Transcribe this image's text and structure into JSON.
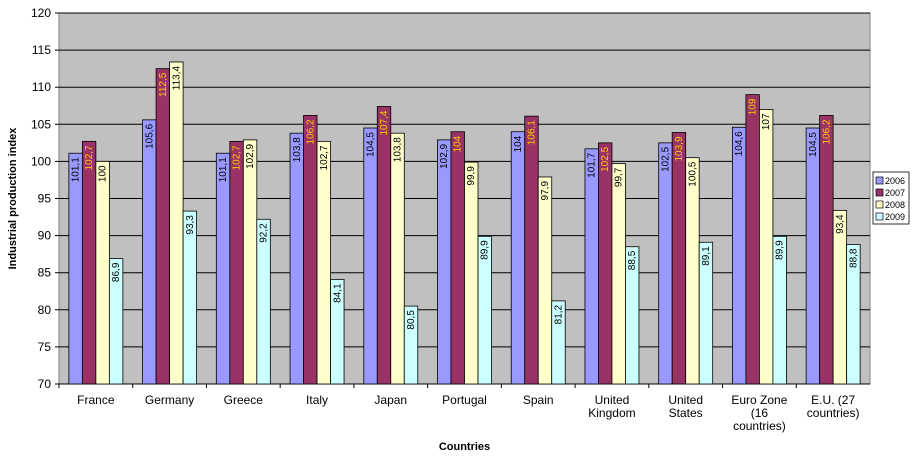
{
  "chart_data": {
    "type": "bar",
    "title": "",
    "xlabel": "Countries",
    "ylabel": "Industrial production index",
    "ylim": [
      70,
      120
    ],
    "yticks": [
      "70",
      "75",
      "80",
      "85",
      "90",
      "95",
      "100",
      "105",
      "110",
      "115",
      "120"
    ],
    "grid": true,
    "legend_position": "right",
    "categories": [
      [
        "France"
      ],
      [
        "Germany"
      ],
      [
        "Greece"
      ],
      [
        "Italy"
      ],
      [
        "Japan"
      ],
      [
        "Portugal"
      ],
      [
        "Spain"
      ],
      [
        "United",
        "Kingdom"
      ],
      [
        "United",
        "States"
      ],
      [
        "Euro Zone",
        "(16",
        "countries)"
      ],
      [
        "E.U. (27",
        "countries)"
      ]
    ],
    "series": [
      {
        "name": "2006",
        "color": "#9999ff",
        "label_color": "#000000",
        "values": [
          101.1,
          105.6,
          101.1,
          103.8,
          104.5,
          102.9,
          104,
          101.7,
          102.5,
          104.6,
          104.5
        ],
        "labels": [
          "101,1",
          "105,6",
          "101,1",
          "103,8",
          "104,5",
          "102,9",
          "104",
          "101,7",
          "102,5",
          "104,6",
          "104,5"
        ]
      },
      {
        "name": "2007",
        "color": "#993366",
        "label_color": "#ffcc00",
        "values": [
          102.7,
          112.5,
          102.7,
          106.2,
          107.4,
          104,
          106.1,
          102.5,
          103.9,
          109,
          106.2
        ],
        "labels": [
          "102,7",
          "112,5",
          "102,7",
          "106,2",
          "107,4",
          "104",
          "106,1",
          "102,5",
          "103,9",
          "109",
          "106,2"
        ]
      },
      {
        "name": "2008",
        "color": "#ffffcc",
        "label_color": "#000000",
        "values": [
          100,
          113.4,
          102.9,
          102.7,
          103.8,
          99.9,
          97.9,
          99.7,
          100.5,
          107,
          93.4
        ],
        "labels": [
          "100",
          "113,4",
          "102,9",
          "102,7",
          "103,8",
          "99,9",
          "97,9",
          "99,7",
          "100,5",
          "107",
          "93,4"
        ]
      },
      {
        "name": "2009",
        "color": "#ccffff",
        "label_color": "#000000",
        "values": [
          86.9,
          93.3,
          92.2,
          84.1,
          80.5,
          89.9,
          81.2,
          88.5,
          89.1,
          89.9,
          88.8
        ],
        "labels": [
          "86,9",
          "93,3",
          "92,2",
          "84,1",
          "80,5",
          "89,9",
          "81,2",
          "88,5",
          "89,1",
          "89,9",
          "88,8"
        ]
      }
    ],
    "colors": {
      "plot_background": "#c0c0c0",
      "gridline": "#000000"
    }
  }
}
